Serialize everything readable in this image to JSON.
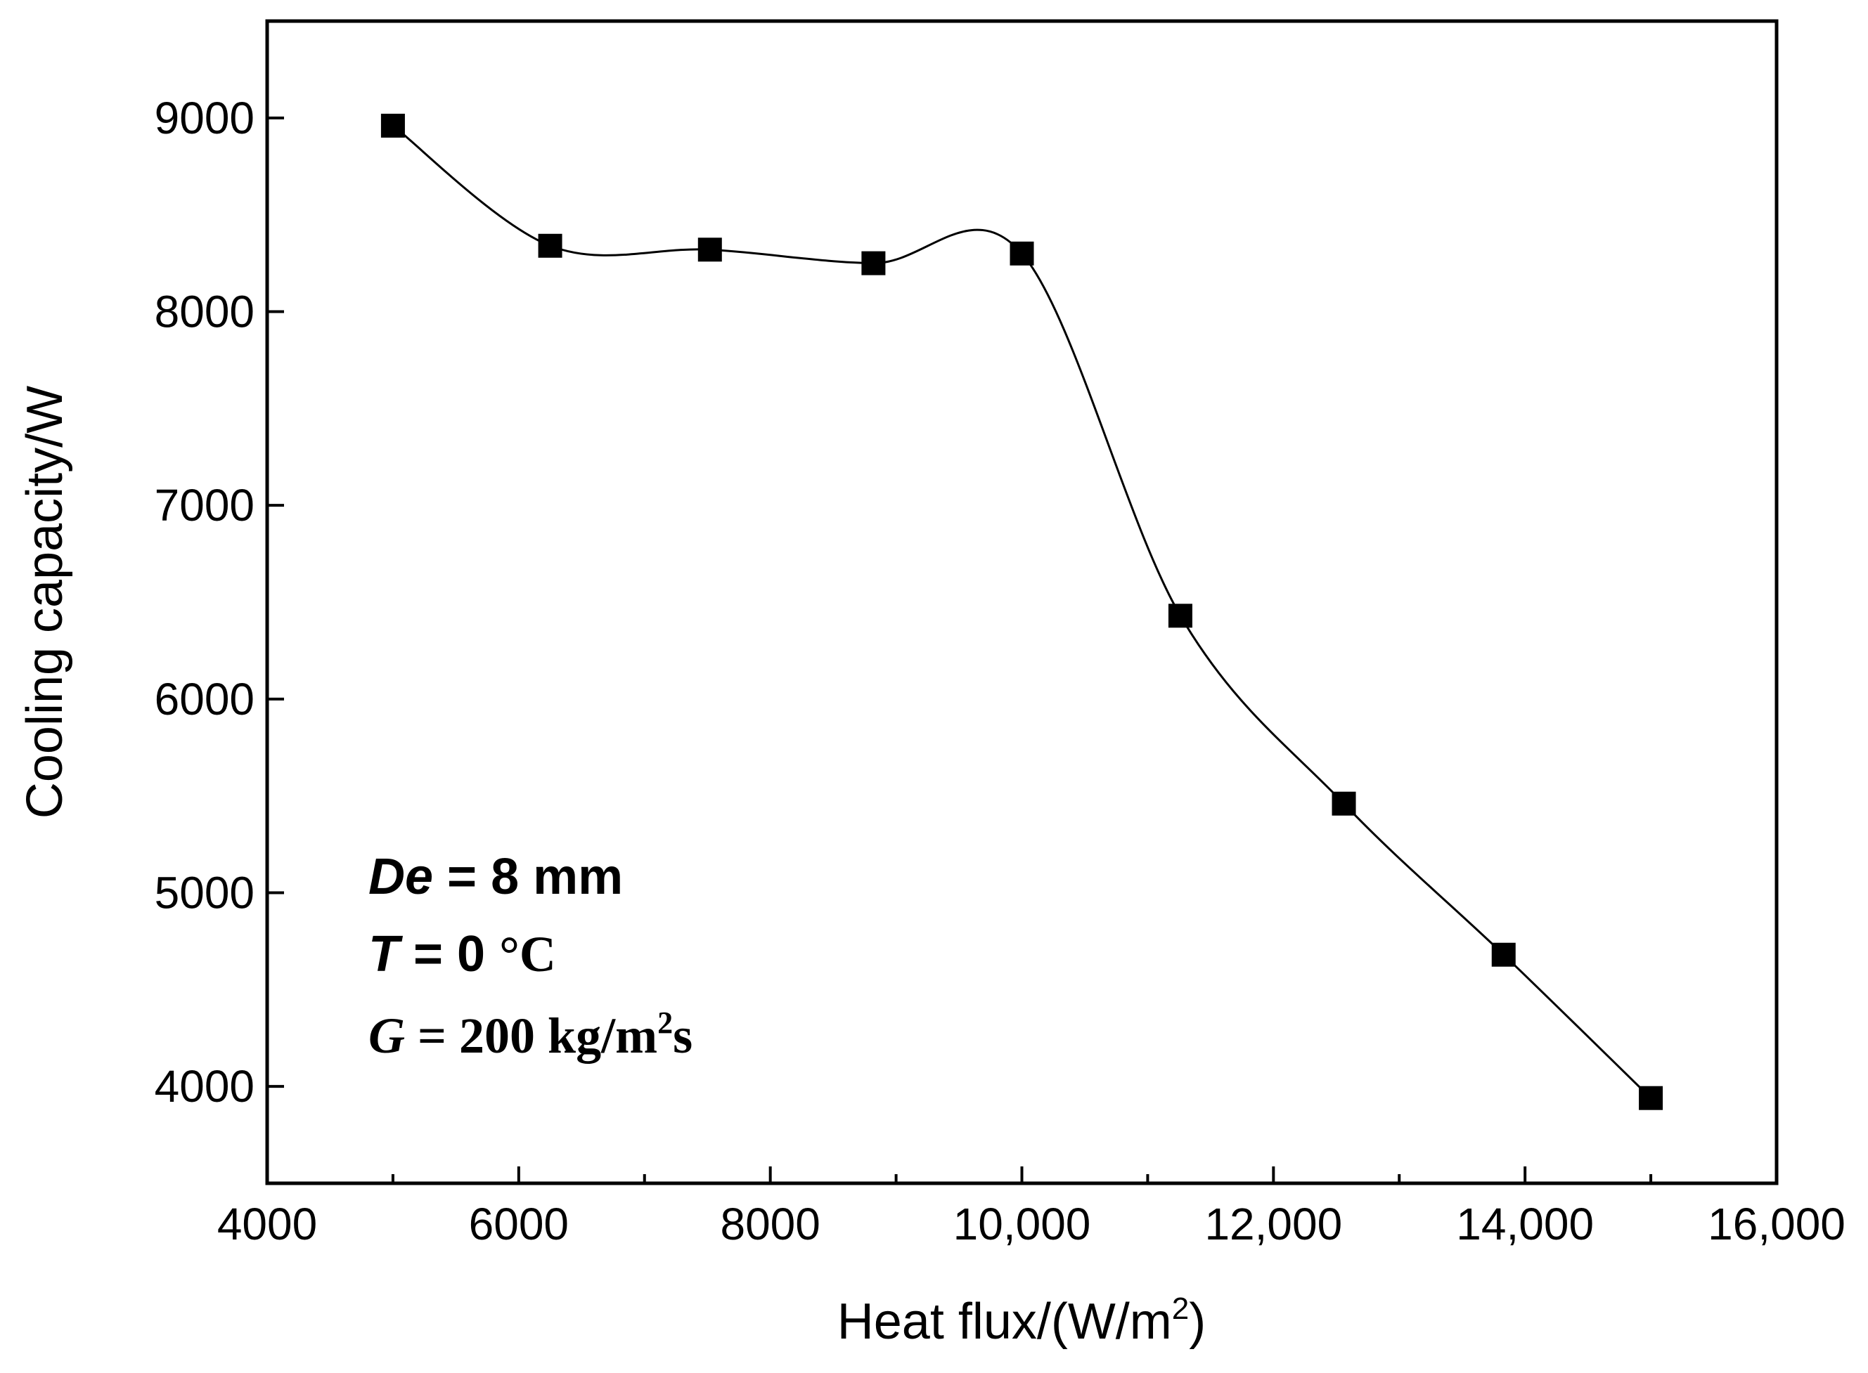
{
  "chart_data": {
    "type": "line",
    "title": "",
    "xlabel": "Heat flux/(W/m",
    "xlabel_sup": "2",
    "xlabel_close": ")",
    "ylabel": "Cooling capacity/W",
    "xlim": [
      4000,
      16000
    ],
    "ylim": [
      3500,
      9500
    ],
    "x_ticks": [
      4000,
      6000,
      8000,
      10000,
      12000,
      14000,
      16000
    ],
    "x_tick_labels": [
      "4000",
      "6000",
      "8000",
      "10,000",
      "12,000",
      "14,000",
      "16,000"
    ],
    "x_minor_ticks": [
      5000,
      7000,
      9000,
      11000,
      13000,
      15000
    ],
    "y_ticks": [
      4000,
      5000,
      6000,
      7000,
      8000,
      9000
    ],
    "y_tick_labels": [
      "4000",
      "5000",
      "6000",
      "7000",
      "8000",
      "9000"
    ],
    "grid": false,
    "series": [
      {
        "name": "Cooling capacity",
        "marker": "square",
        "line": "smooth",
        "color": "#000000",
        "x": [
          5000,
          6250,
          7520,
          8820,
          10000,
          11260,
          12560,
          13830,
          15000
        ],
        "y": [
          8960,
          8340,
          8320,
          8250,
          8300,
          6430,
          5460,
          4680,
          3940
        ]
      }
    ],
    "annotations": {
      "de": {
        "var": "De",
        "rest": " = 8 mm"
      },
      "t": {
        "var": "T",
        "rest": " = 0 ",
        "unit": "°C"
      },
      "g": {
        "var": "G",
        "rest": " = 200 kg/m",
        "sup": "2",
        "tail": "s"
      }
    }
  }
}
